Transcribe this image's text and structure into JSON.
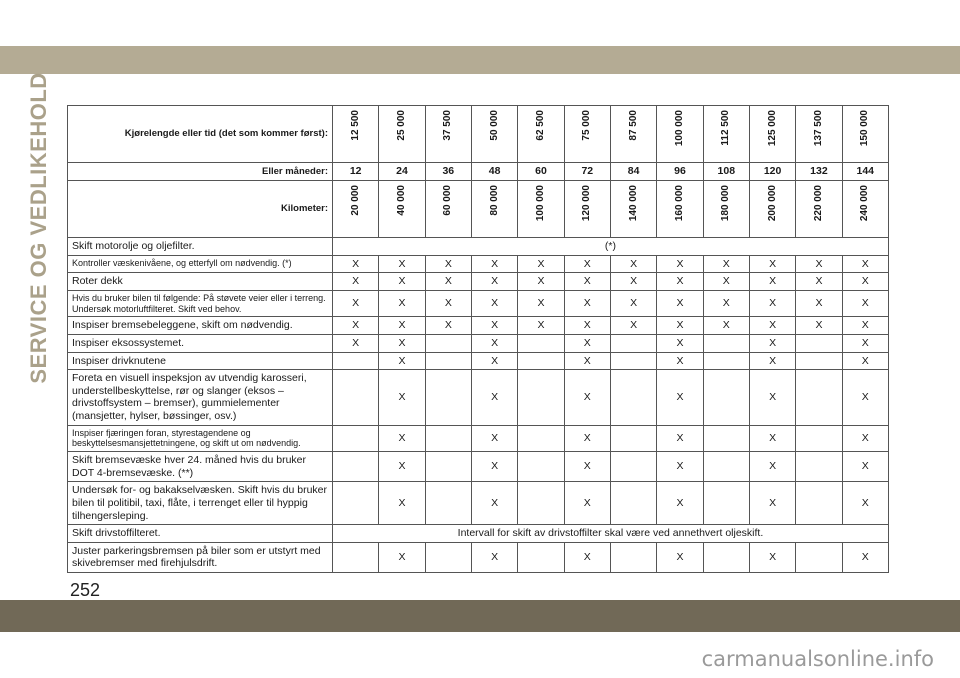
{
  "section_title": "SERVICE OG VEDLIKEHOLD",
  "page_number": "252",
  "watermark": "carmanualsonline.info",
  "header": {
    "mileage_label": "Kjørelengde eller tid (det som kommer først):",
    "mileage": [
      "12 500",
      "25 000",
      "37 500",
      "50 000",
      "62 500",
      "75 000",
      "87 500",
      "100 000",
      "112 500",
      "125 000",
      "137 500",
      "150 000"
    ],
    "months_label": "Eller måneder:",
    "months": [
      "12",
      "24",
      "36",
      "48",
      "60",
      "72",
      "84",
      "96",
      "108",
      "120",
      "132",
      "144"
    ],
    "km_label": "Kilometer:",
    "km": [
      "20 000",
      "40 000",
      "60 000",
      "80 000",
      "100 000",
      "120 000",
      "140 000",
      "160 000",
      "180 000",
      "200 000",
      "220 000",
      "240 000"
    ]
  },
  "rows": [
    {
      "label": "Skift motorolje og oljefilter.",
      "span": "(*)"
    },
    {
      "label": "Kontroller væskenivåene, og etterfyll om nødvendig. (*)",
      "small": true,
      "cells": [
        "X",
        "X",
        "X",
        "X",
        "X",
        "X",
        "X",
        "X",
        "X",
        "X",
        "X",
        "X"
      ]
    },
    {
      "label": "Roter dekk",
      "cells": [
        "X",
        "X",
        "X",
        "X",
        "X",
        "X",
        "X",
        "X",
        "X",
        "X",
        "X",
        "X"
      ]
    },
    {
      "label": "Hvis du bruker bilen til følgende: På støvete veier eller i terreng. Undersøk motorluftfilteret. Skift ved behov.",
      "small": true,
      "cells": [
        "X",
        "X",
        "X",
        "X",
        "X",
        "X",
        "X",
        "X",
        "X",
        "X",
        "X",
        "X"
      ]
    },
    {
      "label": "Inspiser bremsebeleggene, skift om nødvendig.",
      "cells": [
        "X",
        "X",
        "X",
        "X",
        "X",
        "X",
        "X",
        "X",
        "X",
        "X",
        "X",
        "X"
      ]
    },
    {
      "label": "Inspiser eksossystemet.",
      "cells": [
        "X",
        "X",
        "",
        "X",
        "",
        "X",
        "",
        "X",
        "",
        "X",
        "",
        "X"
      ]
    },
    {
      "label": "Inspiser drivknutene",
      "cells": [
        "",
        "X",
        "",
        "X",
        "",
        "X",
        "",
        "X",
        "",
        "X",
        "",
        "X"
      ]
    },
    {
      "label": "Foreta en visuell inspeksjon av utvendig karosseri, understellbeskyttelse, rør og slanger (eksos – drivstoffsystem – bremser), gummielementer (mansjetter, hylser, bøssinger, osv.)",
      "cells": [
        "",
        "X",
        "",
        "X",
        "",
        "X",
        "",
        "X",
        "",
        "X",
        "",
        "X"
      ]
    },
    {
      "label": "Inspiser fjæringen foran, styrestagendene og beskyttelsesmansjettetningene, og skift ut om nødvendig.",
      "small": true,
      "cells": [
        "",
        "X",
        "",
        "X",
        "",
        "X",
        "",
        "X",
        "",
        "X",
        "",
        "X"
      ]
    },
    {
      "label": "Skift bremsevæske hver 24. måned hvis du bruker DOT 4-bremsevæske. (**)",
      "cells": [
        "",
        "X",
        "",
        "X",
        "",
        "X",
        "",
        "X",
        "",
        "X",
        "",
        "X"
      ]
    },
    {
      "label": "Undersøk for- og bakakselvæsken. Skift hvis du bruker bilen til politibil, taxi, flåte, i terrenget eller til hyppig tilhengersleping.",
      "cells": [
        "",
        "X",
        "",
        "X",
        "",
        "X",
        "",
        "X",
        "",
        "X",
        "",
        "X"
      ]
    },
    {
      "label": "Skift drivstoffilteret.",
      "span": "Intervall for skift av drivstoffilter skal være ved annethvert oljeskift."
    },
    {
      "label": "Juster parkeringsbremsen på biler som er utstyrt med skivebremser med firehjulsdrift.",
      "cells": [
        "",
        "X",
        "",
        "X",
        "",
        "X",
        "",
        "X",
        "",
        "X",
        "",
        "X"
      ]
    }
  ]
}
